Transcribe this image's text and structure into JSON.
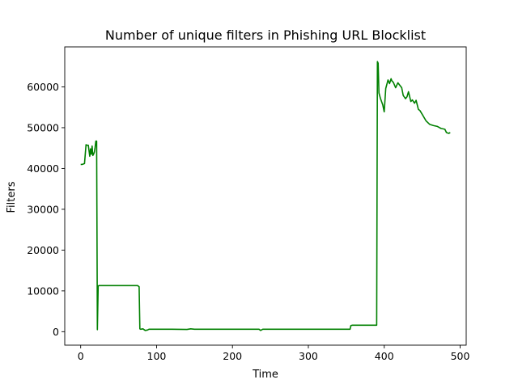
{
  "chart_data": {
    "type": "line",
    "title": "Number of unique filters in Phishing URL Blocklist",
    "xlabel": "Time",
    "ylabel": "Filters",
    "xlim": [
      -21,
      508
    ],
    "ylim": [
      -3300,
      69800
    ],
    "xticks": [
      0,
      100,
      200,
      300,
      400,
      500
    ],
    "yticks": [
      0,
      10000,
      20000,
      30000,
      40000,
      50000,
      60000
    ],
    "grid": false,
    "legend": "none",
    "series": [
      {
        "color": "#008000",
        "x": [
          0,
          2,
          5,
          7,
          8,
          10,
          12,
          13,
          14,
          15,
          16,
          17,
          18,
          19,
          20,
          21,
          22,
          23,
          24,
          25,
          30,
          40,
          50,
          60,
          70,
          75,
          77,
          78,
          79,
          82,
          85,
          88,
          90,
          95,
          100,
          120,
          140,
          145,
          150,
          200,
          235,
          237,
          240,
          300,
          355,
          356,
          358,
          360,
          380,
          390,
          391,
          392,
          393,
          395,
          398,
          400,
          402,
          405,
          407,
          409,
          410,
          412,
          415,
          418,
          420,
          423,
          425,
          428,
          430,
          432,
          435,
          437,
          440,
          442,
          445,
          447,
          450,
          455,
          460,
          465,
          470,
          475,
          478,
          480,
          482,
          485,
          487
        ],
        "y": [
          41000,
          41000,
          41200,
          45800,
          45700,
          45700,
          43000,
          44800,
          43500,
          45500,
          43200,
          43500,
          44000,
          45200,
          46700,
          46700,
          500,
          11200,
          11300,
          11300,
          11300,
          11300,
          11300,
          11300,
          11300,
          11300,
          11000,
          700,
          600,
          700,
          300,
          400,
          600,
          600,
          600,
          600,
          550,
          700,
          600,
          600,
          600,
          300,
          600,
          600,
          600,
          1500,
          1600,
          1600,
          1600,
          1600,
          66200,
          65800,
          58500,
          57200,
          55600,
          53900,
          59600,
          61700,
          60800,
          62000,
          61500,
          61100,
          59800,
          61000,
          60500,
          59800,
          57900,
          57100,
          57600,
          58800,
          56400,
          56800,
          56000,
          56700,
          54500,
          54200,
          53300,
          51700,
          50800,
          50500,
          50300,
          49800,
          49700,
          49600,
          48800,
          48600,
          48800
        ]
      }
    ]
  }
}
